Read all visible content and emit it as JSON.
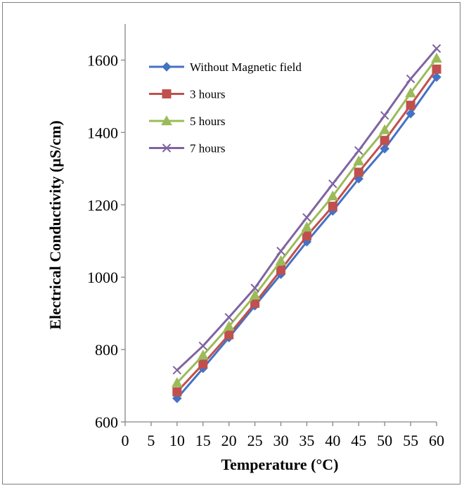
{
  "chart_data": {
    "type": "line",
    "title": "",
    "xlabel": "Temperature (°C)",
    "ylabel": "Electrical Conductivity (µS/cm)",
    "xlim": [
      0,
      60
    ],
    "ylim": [
      600,
      1700
    ],
    "x_ticks": [
      0,
      5,
      10,
      15,
      20,
      25,
      30,
      35,
      40,
      45,
      50,
      55,
      60
    ],
    "y_ticks": [
      600,
      800,
      1000,
      1200,
      1400,
      1600
    ],
    "grid": false,
    "legend_position": "top-left",
    "x": [
      10,
      15,
      20,
      25,
      30,
      35,
      40,
      45,
      50,
      55,
      60
    ],
    "series": [
      {
        "name": "Without Magnetic field",
        "color": "#4472C4",
        "marker": "diamond",
        "values": [
          665,
          748,
          833,
          921,
          1008,
          1098,
          1183,
          1272,
          1355,
          1452,
          1553
        ]
      },
      {
        "name": "3 hours",
        "color": "#C0504D",
        "marker": "square",
        "values": [
          683,
          760,
          841,
          928,
          1020,
          1114,
          1196,
          1290,
          1378,
          1475,
          1575
        ]
      },
      {
        "name": "5 hours",
        "color": "#9BBB59",
        "marker": "triangle",
        "values": [
          708,
          784,
          864,
          950,
          1045,
          1138,
          1224,
          1321,
          1407,
          1509,
          1605
        ]
      },
      {
        "name": "7 hours",
        "color": "#8064A2",
        "marker": "x",
        "values": [
          743,
          810,
          889,
          970,
          1072,
          1165,
          1258,
          1350,
          1447,
          1548,
          1632
        ]
      }
    ]
  }
}
